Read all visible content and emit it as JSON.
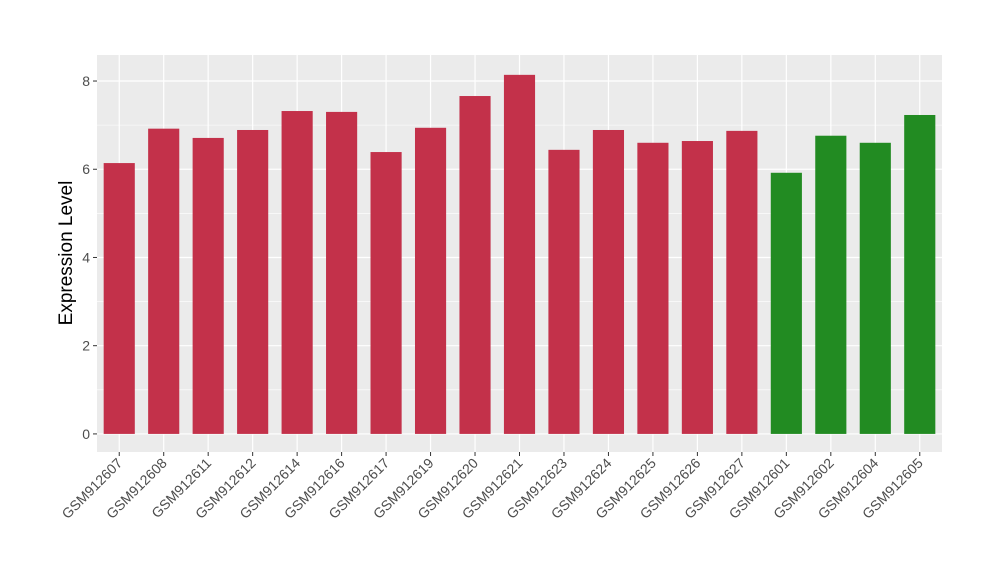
{
  "chart_data": {
    "type": "bar",
    "title": "",
    "xlabel": "",
    "ylabel": "Expression Level",
    "ylim": [
      -0.41,
      8.59
    ],
    "yticks": [
      0,
      2,
      4,
      6,
      8
    ],
    "grid": true,
    "categories": [
      "GSM912607",
      "GSM912608",
      "GSM912611",
      "GSM912612",
      "GSM912614",
      "GSM912616",
      "GSM912617",
      "GSM912619",
      "GSM912620",
      "GSM912621",
      "GSM912623",
      "GSM912624",
      "GSM912625",
      "GSM912626",
      "GSM912627",
      "GSM912601",
      "GSM912602",
      "GSM912604",
      "GSM912605"
    ],
    "values": [
      6.14,
      6.92,
      6.71,
      6.89,
      7.32,
      7.3,
      6.39,
      6.94,
      7.66,
      8.14,
      6.44,
      6.89,
      6.6,
      6.64,
      6.87,
      5.92,
      6.76,
      6.6,
      7.23
    ],
    "groups": [
      "a",
      "a",
      "a",
      "a",
      "a",
      "a",
      "a",
      "a",
      "a",
      "a",
      "a",
      "a",
      "a",
      "a",
      "a",
      "b",
      "b",
      "b",
      "b"
    ],
    "colors": {
      "a": "#C3314A",
      "b": "#228B22"
    }
  }
}
